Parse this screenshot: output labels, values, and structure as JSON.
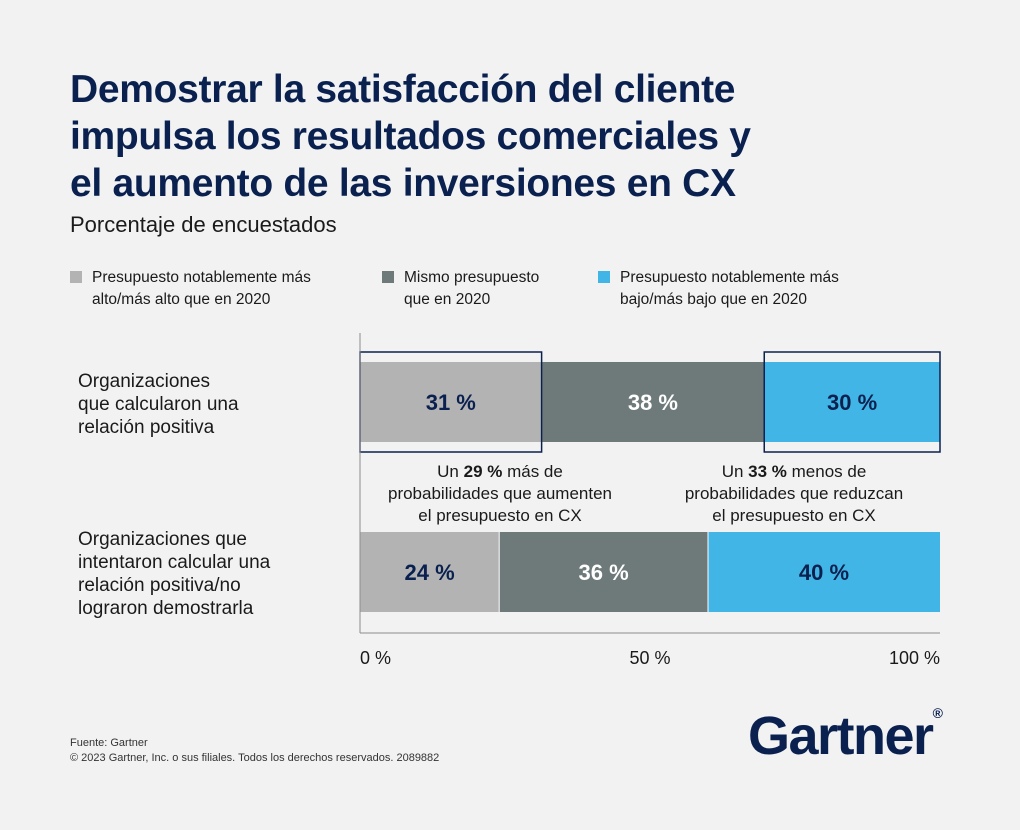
{
  "title_lines": [
    "Demostrar la satisfacción del cliente",
    "impulsa los resultados comerciales y",
    "el aumento de las inversiones en CX"
  ],
  "subtitle": "Porcentaje de encuestados",
  "legend": [
    {
      "label": "Presupuesto notablemente más\nalto/más alto que en 2020",
      "color": "#b3b3b3"
    },
    {
      "label": "Mismo presupuesto\nque en 2020",
      "color": "#6e7a7a"
    },
    {
      "label": "Presupuesto notablemente más\nbajo/más bajo que en 2020",
      "color": "#41b6e6"
    }
  ],
  "rows": [
    {
      "label": "Organizaciones\nque calcularon una\nrelación positiva"
    },
    {
      "label": "Organizaciones que\nintentaron calcular una\nrelación positiva/no\nlograron demostrarla"
    }
  ],
  "annotations": [
    {
      "pre": "Un ",
      "bold": "29 %",
      "post": " más de\nprobabilidades que aumenten\nel presupuesto en CX"
    },
    {
      "pre": "Un ",
      "bold": "33 %",
      "post": " menos de\nprobabilidades que reduzcan\nel presupuesto en CX"
    }
  ],
  "chart_data": {
    "type": "bar",
    "orientation": "horizontal",
    "stacked": true,
    "categories": [
      "Organizaciones que calcularon una relación positiva",
      "Organizaciones que intentaron calcular una relación positiva/no lograron demostrarla"
    ],
    "series": [
      {
        "name": "Presupuesto notablemente más alto/más alto que en 2020",
        "values": [
          31,
          24
        ],
        "labels": [
          "31 %",
          "24 %"
        ],
        "color": "#b3b3b3",
        "label_color": "#0a2150"
      },
      {
        "name": "Mismo presupuesto que en 2020",
        "values": [
          38,
          36
        ],
        "labels": [
          "38 %",
          "36 %"
        ],
        "color": "#6e7a7a",
        "label_color": "#ffffff"
      },
      {
        "name": "Presupuesto notablemente más bajo/más bajo que en 2020",
        "values": [
          30,
          40
        ],
        "labels": [
          "30 %",
          "40 %"
        ],
        "color": "#41b6e6",
        "label_color": "#0a2150"
      }
    ],
    "highlighted": [
      [
        0,
        0
      ],
      [
        0,
        2
      ]
    ],
    "xlim": [
      0,
      100
    ],
    "xticks": [
      0,
      50,
      100
    ],
    "xtick_labels": [
      "0 %",
      "50 %",
      "100 %"
    ],
    "highlight_color": "#0a2150"
  },
  "source_lines": [
    "Fuente: Gartner",
    "© 2023 Gartner, Inc. o sus filiales. Todos los derechos reservados. 2089882"
  ],
  "logo": {
    "text": "Gartner",
    "mark": "®"
  }
}
